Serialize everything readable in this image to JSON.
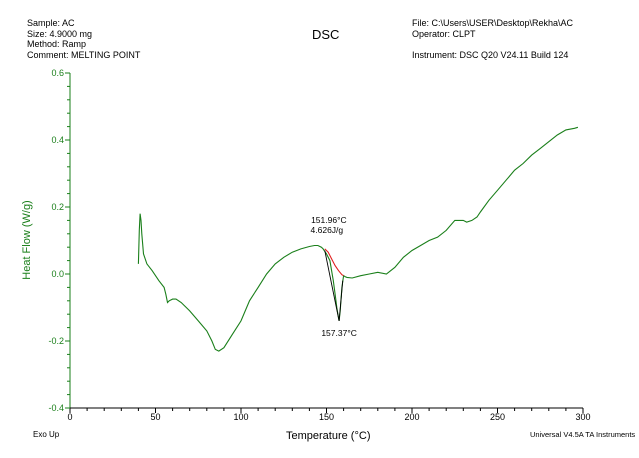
{
  "header": {
    "sample": "Sample: AC",
    "size": "Size:  4.9000 mg",
    "method": "Method: Ramp",
    "comment": "Comment: MELTING POINT",
    "file": "File: C:\\Users\\USER\\Desktop\\Rekha\\AC",
    "operator": "Operator: CLPT",
    "instrument": "Instrument: DSC Q20 V24.11 Build 124"
  },
  "footer": {
    "exo": "Exo Up",
    "software": "Universal V4.5A TA Instruments"
  },
  "chart_data": {
    "type": "line",
    "title": "DSC",
    "xlabel": "Temperature (°C)",
    "ylabel": "Heat Flow (W/g)",
    "xlim": [
      0,
      300
    ],
    "ylim": [
      -0.4,
      0.6
    ],
    "xticks": [
      0,
      50,
      100,
      150,
      200,
      250,
      300
    ],
    "yticks": [
      -0.4,
      -0.2,
      0.0,
      0.2,
      0.4,
      0.6
    ],
    "ytick_labels": [
      "-0.4",
      "-0.2",
      "0.0",
      "0.2",
      "0.4",
      "0.6"
    ],
    "grid": false,
    "colors": {
      "curve": "#1a7f1a",
      "integration": "#e02020",
      "axis": "#1a7f1a"
    },
    "series": [
      {
        "x": [
          40,
          40.5,
          41,
          41.5,
          42,
          43,
          45,
          48,
          52,
          55,
          56,
          57,
          58,
          60,
          62,
          65,
          70,
          75,
          80,
          83,
          85,
          87,
          90,
          95,
          100,
          105,
          110,
          115,
          120,
          125,
          130,
          135,
          140,
          143,
          145,
          147,
          148,
          150,
          152,
          154,
          155,
          156,
          157,
          157.37,
          158,
          159,
          160,
          161,
          162,
          165,
          170,
          175,
          180,
          185,
          190,
          195,
          200,
          205,
          210,
          215,
          220,
          225,
          230,
          232,
          235,
          238,
          240,
          245,
          250,
          255,
          260,
          265,
          270,
          275,
          280,
          285,
          290,
          295,
          297
        ],
        "y": [
          0.03,
          0.13,
          0.18,
          0.16,
          0.12,
          0.06,
          0.03,
          0.01,
          -0.02,
          -0.04,
          -0.06,
          -0.085,
          -0.08,
          -0.075,
          -0.075,
          -0.085,
          -0.11,
          -0.14,
          -0.17,
          -0.2,
          -0.225,
          -0.23,
          -0.22,
          -0.18,
          -0.14,
          -0.08,
          -0.04,
          -0.0,
          0.03,
          0.05,
          0.065,
          0.075,
          0.082,
          0.085,
          0.085,
          0.08,
          0.075,
          0.06,
          0.04,
          -0.02,
          -0.06,
          -0.1,
          -0.13,
          -0.14,
          -0.11,
          -0.04,
          -0.005,
          -0.008,
          -0.01,
          -0.012,
          -0.005,
          0.0,
          0.005,
          -0.0,
          0.02,
          0.05,
          0.07,
          0.085,
          0.1,
          0.11,
          0.13,
          0.16,
          0.16,
          0.155,
          0.16,
          0.17,
          0.185,
          0.22,
          0.25,
          0.28,
          0.31,
          0.33,
          0.355,
          0.375,
          0.395,
          0.415,
          0.43,
          0.435,
          0.438
        ]
      }
    ],
    "integration": {
      "x": [
        149,
        151,
        153,
        155,
        157,
        159,
        160
      ],
      "y": [
        0.075,
        0.065,
        0.045,
        0.025,
        0.01,
        -0.002,
        -0.005
      ]
    },
    "annotations": [
      {
        "text": "151.96°C",
        "x": 151.96,
        "y": 0.08
      },
      {
        "text": "4.626J/g",
        "x": 151.96,
        "y": 0.08
      },
      {
        "text": "157.37°C",
        "x": 157.37,
        "y": -0.14
      }
    ]
  }
}
